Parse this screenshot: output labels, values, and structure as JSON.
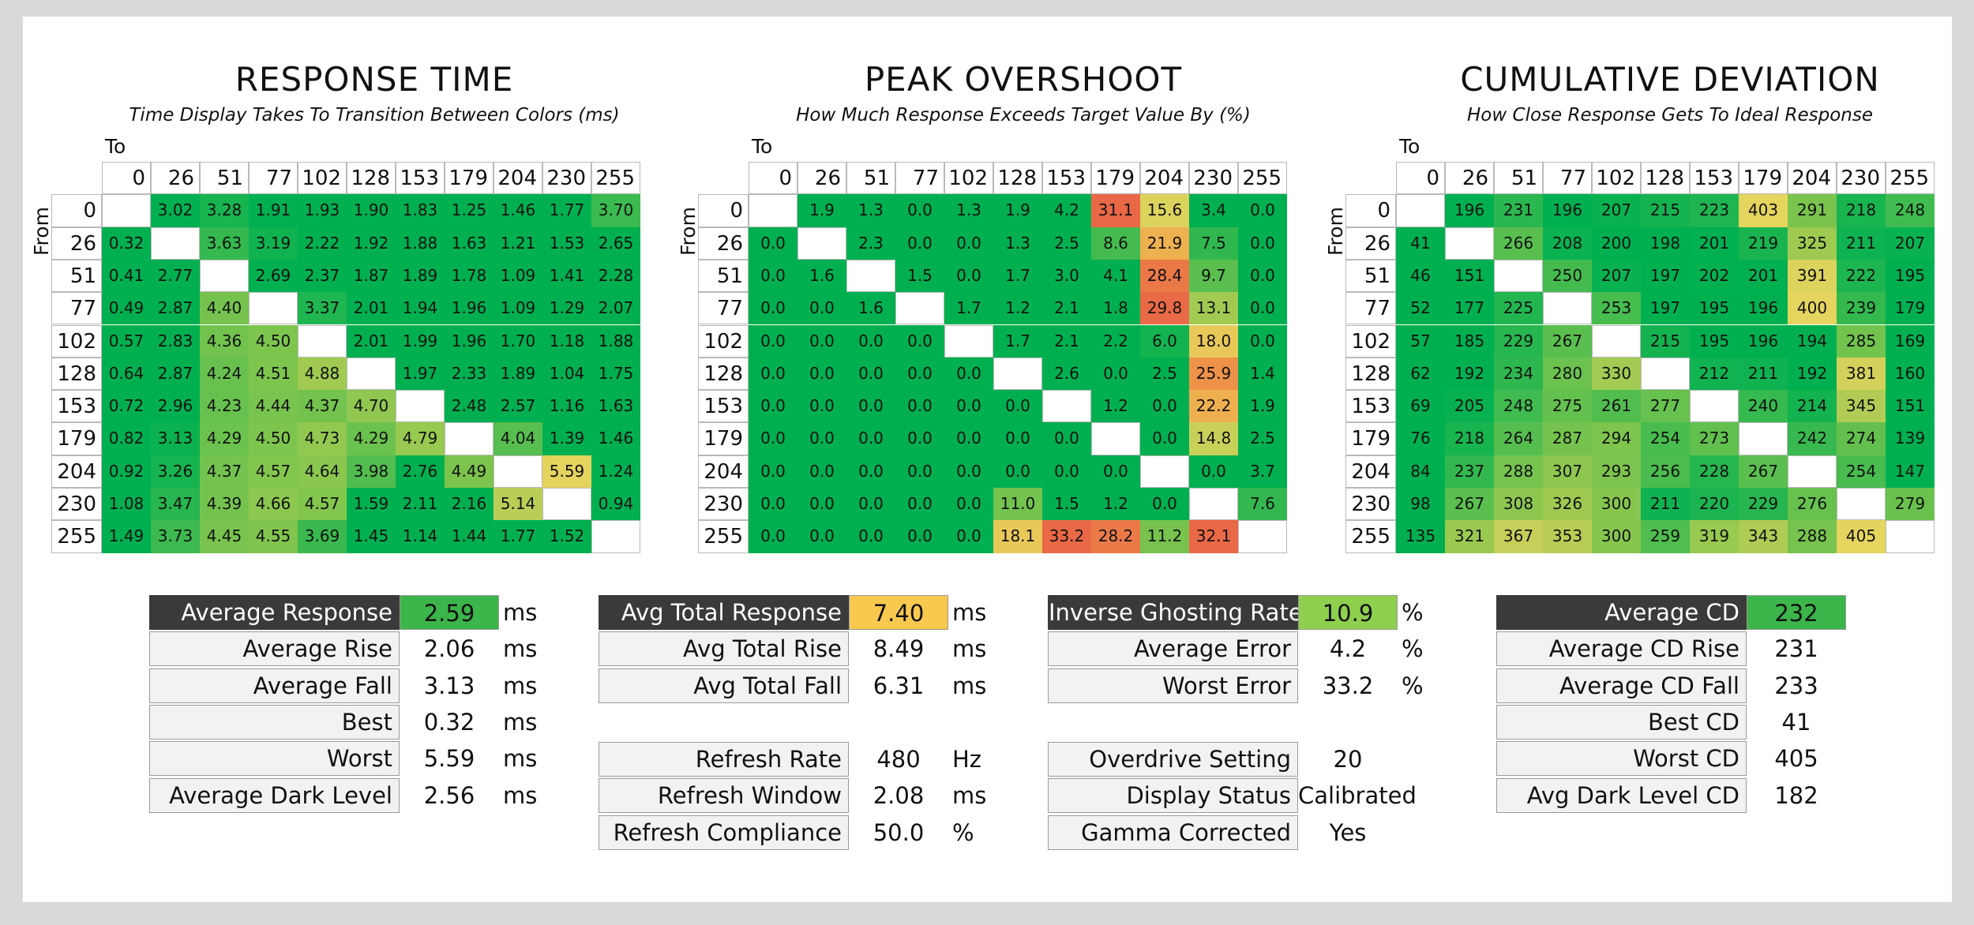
{
  "chart_data": [
    {
      "type": "heatmap",
      "title": "RESPONSE TIME",
      "subtitle": "Time Display Takes To Transition Between Colors (ms)",
      "xlabel": "To",
      "ylabel": "From",
      "categories": [
        "0",
        "26",
        "51",
        "77",
        "102",
        "128",
        "153",
        "179",
        "204",
        "230",
        "255"
      ],
      "values": [
        [
          null,
          "3.02",
          "3.28",
          "1.91",
          "1.93",
          "1.90",
          "1.83",
          "1.25",
          "1.46",
          "1.77",
          "3.70"
        ],
        [
          "0.32",
          null,
          "3.63",
          "3.19",
          "2.22",
          "1.92",
          "1.88",
          "1.63",
          "1.21",
          "1.53",
          "2.65"
        ],
        [
          "0.41",
          "2.77",
          null,
          "2.69",
          "2.37",
          "1.87",
          "1.89",
          "1.78",
          "1.09",
          "1.41",
          "2.28"
        ],
        [
          "0.49",
          "2.87",
          "4.40",
          null,
          "3.37",
          "2.01",
          "1.94",
          "1.96",
          "1.09",
          "1.29",
          "2.07"
        ],
        [
          "0.57",
          "2.83",
          "4.36",
          "4.50",
          null,
          "2.01",
          "1.99",
          "1.96",
          "1.70",
          "1.18",
          "1.88"
        ],
        [
          "0.64",
          "2.87",
          "4.24",
          "4.51",
          "4.88",
          null,
          "1.97",
          "2.33",
          "1.89",
          "1.04",
          "1.75"
        ],
        [
          "0.72",
          "2.96",
          "4.23",
          "4.44",
          "4.37",
          "4.70",
          null,
          "2.48",
          "2.57",
          "1.16",
          "1.63"
        ],
        [
          "0.82",
          "3.13",
          "4.29",
          "4.50",
          "4.73",
          "4.29",
          "4.79",
          null,
          "4.04",
          "1.39",
          "1.46"
        ],
        [
          "0.92",
          "3.26",
          "4.37",
          "4.57",
          "4.64",
          "3.98",
          "2.76",
          "4.49",
          null,
          "5.59",
          "1.24"
        ],
        [
          "1.08",
          "3.47",
          "4.39",
          "4.66",
          "4.57",
          "1.59",
          "2.11",
          "2.16",
          "5.14",
          null,
          "0.94"
        ],
        [
          "1.49",
          "3.73",
          "4.45",
          "4.55",
          "3.69",
          "1.45",
          "1.14",
          "1.44",
          "1.77",
          "1.52",
          null
        ]
      ]
    },
    {
      "type": "heatmap",
      "title": "PEAK OVERSHOOT",
      "subtitle": "How Much Response Exceeds Target Value By (%)",
      "xlabel": "To",
      "ylabel": "From",
      "categories": [
        "0",
        "26",
        "51",
        "77",
        "102",
        "128",
        "153",
        "179",
        "204",
        "230",
        "255"
      ],
      "values": [
        [
          null,
          "1.9",
          "1.3",
          "0.0",
          "1.3",
          "1.9",
          "4.2",
          "31.1",
          "15.6",
          "3.4",
          "0.0"
        ],
        [
          "0.0",
          null,
          "2.3",
          "0.0",
          "0.0",
          "1.3",
          "2.5",
          "8.6",
          "21.9",
          "7.5",
          "0.0"
        ],
        [
          "0.0",
          "1.6",
          null,
          "1.5",
          "0.0",
          "1.7",
          "3.0",
          "4.1",
          "28.4",
          "9.7",
          "0.0"
        ],
        [
          "0.0",
          "0.0",
          "1.6",
          null,
          "1.7",
          "1.2",
          "2.1",
          "1.8",
          "29.8",
          "13.1",
          "0.0"
        ],
        [
          "0.0",
          "0.0",
          "0.0",
          "0.0",
          null,
          "1.7",
          "2.1",
          "2.2",
          "6.0",
          "18.0",
          "0.0"
        ],
        [
          "0.0",
          "0.0",
          "0.0",
          "0.0",
          "0.0",
          null,
          "2.6",
          "0.0",
          "2.5",
          "25.9",
          "1.4"
        ],
        [
          "0.0",
          "0.0",
          "0.0",
          "0.0",
          "0.0",
          "0.0",
          null,
          "1.2",
          "0.0",
          "22.2",
          "1.9"
        ],
        [
          "0.0",
          "0.0",
          "0.0",
          "0.0",
          "0.0",
          "0.0",
          "0.0",
          null,
          "0.0",
          "14.8",
          "2.5"
        ],
        [
          "0.0",
          "0.0",
          "0.0",
          "0.0",
          "0.0",
          "0.0",
          "0.0",
          "0.0",
          null,
          "0.0",
          "3.7"
        ],
        [
          "0.0",
          "0.0",
          "0.0",
          "0.0",
          "0.0",
          "11.0",
          "1.5",
          "1.2",
          "0.0",
          null,
          "7.6"
        ],
        [
          "0.0",
          "0.0",
          "0.0",
          "0.0",
          "0.0",
          "18.1",
          "33.2",
          "28.2",
          "11.2",
          "32.1",
          null
        ]
      ]
    },
    {
      "type": "heatmap",
      "title": "CUMULATIVE DEVIATION",
      "subtitle": "How Close Response Gets To Ideal Response",
      "xlabel": "To",
      "ylabel": "From",
      "categories": [
        "0",
        "26",
        "51",
        "77",
        "102",
        "128",
        "153",
        "179",
        "204",
        "230",
        "255"
      ],
      "values": [
        [
          null,
          "196",
          "231",
          "196",
          "207",
          "215",
          "223",
          "403",
          "291",
          "218",
          "248"
        ],
        [
          "41",
          null,
          "266",
          "208",
          "200",
          "198",
          "201",
          "219",
          "325",
          "211",
          "207"
        ],
        [
          "46",
          "151",
          null,
          "250",
          "207",
          "197",
          "202",
          "201",
          "391",
          "222",
          "195"
        ],
        [
          "52",
          "177",
          "225",
          null,
          "253",
          "197",
          "195",
          "196",
          "400",
          "239",
          "179"
        ],
        [
          "57",
          "185",
          "229",
          "267",
          null,
          "215",
          "195",
          "196",
          "194",
          "285",
          "169"
        ],
        [
          "62",
          "192",
          "234",
          "280",
          "330",
          null,
          "212",
          "211",
          "192",
          "381",
          "160"
        ],
        [
          "69",
          "205",
          "248",
          "275",
          "261",
          "277",
          null,
          "240",
          "214",
          "345",
          "151"
        ],
        [
          "76",
          "218",
          "264",
          "287",
          "294",
          "254",
          "273",
          null,
          "242",
          "274",
          "139"
        ],
        [
          "84",
          "237",
          "288",
          "307",
          "293",
          "256",
          "228",
          "267",
          null,
          "254",
          "147"
        ],
        [
          "98",
          "267",
          "308",
          "326",
          "300",
          "211",
          "220",
          "229",
          "276",
          null,
          "279"
        ],
        [
          "135",
          "321",
          "367",
          "353",
          "300",
          "259",
          "319",
          "343",
          "288",
          "405",
          null
        ]
      ]
    }
  ],
  "stats": {
    "response": [
      {
        "label": "Average Response",
        "value": "2.59",
        "unit": "ms",
        "style": "dark",
        "hl": "#3cb54a"
      },
      {
        "label": "Average Rise",
        "value": "2.06",
        "unit": "ms"
      },
      {
        "label": "Average Fall",
        "value": "3.13",
        "unit": "ms"
      },
      {
        "label": "Best",
        "value": "0.32",
        "unit": "ms"
      },
      {
        "label": "Worst",
        "value": "5.59",
        "unit": "ms"
      },
      {
        "label": "Average Dark Level",
        "value": "2.56",
        "unit": "ms"
      }
    ],
    "total": [
      {
        "label": "Avg Total Response",
        "value": "7.40",
        "unit": "ms",
        "style": "dark",
        "hl": "#f9c94f"
      },
      {
        "label": "Avg Total Rise",
        "value": "8.49",
        "unit": "ms"
      },
      {
        "label": "Avg Total Fall",
        "value": "6.31",
        "unit": "ms"
      }
    ],
    "refresh": [
      {
        "label": "Refresh Rate",
        "value": "480",
        "unit": "Hz"
      },
      {
        "label": "Refresh Window",
        "value": "2.08",
        "unit": "ms"
      },
      {
        "label": "Refresh Compliance",
        "value": "50.0",
        "unit": "%"
      }
    ],
    "overshoot": [
      {
        "label": "Inverse Ghosting Rate",
        "value": "10.9",
        "unit": "%",
        "style": "dark",
        "hl": "#8fcf4e"
      },
      {
        "label": "Average Error",
        "value": "4.2",
        "unit": "%"
      },
      {
        "label": "Worst Error",
        "value": "33.2",
        "unit": "%"
      }
    ],
    "settings": [
      {
        "label": "Overdrive Setting",
        "value": "20",
        "unit": ""
      },
      {
        "label": "Display Status",
        "value": "Calibrated",
        "unit": ""
      },
      {
        "label": "Gamma Corrected",
        "value": "Yes",
        "unit": ""
      }
    ],
    "cd": [
      {
        "label": "Average CD",
        "value": "232",
        "unit": "",
        "style": "dark",
        "hl": "#3cb54a"
      },
      {
        "label": "Average CD Rise",
        "value": "231",
        "unit": ""
      },
      {
        "label": "Average CD Fall",
        "value": "233",
        "unit": ""
      },
      {
        "label": "Best CD",
        "value": "41",
        "unit": ""
      },
      {
        "label": "Worst CD",
        "value": "405",
        "unit": ""
      },
      {
        "label": "Avg Dark Level CD",
        "value": "182",
        "unit": ""
      }
    ]
  }
}
